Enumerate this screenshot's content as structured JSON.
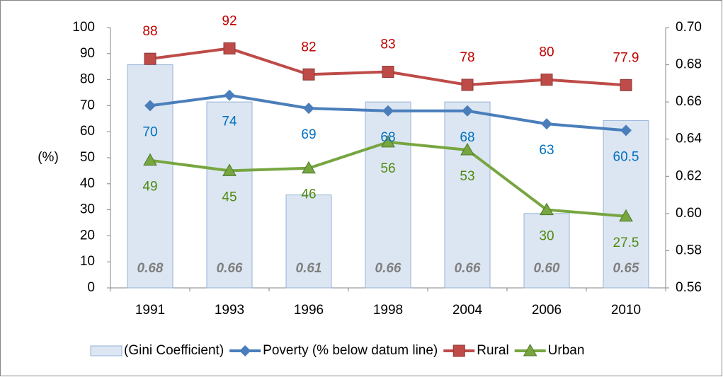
{
  "chart_data": {
    "type": "bar",
    "y_label": "(%)",
    "categories": [
      "1991",
      "1993",
      "1996",
      "1998",
      "2004",
      "2006",
      "2010"
    ],
    "ylim": [
      0,
      100
    ],
    "yticks": [
      0,
      10,
      20,
      30,
      40,
      50,
      60,
      70,
      80,
      90,
      100
    ],
    "y2lim": [
      0.56,
      0.7
    ],
    "y2ticks": [
      {
        "value": 0.56,
        "label": "0.56"
      },
      {
        "value": 0.58,
        "label": "0.58"
      },
      {
        "value": 0.6,
        "label": "0.60"
      },
      {
        "value": 0.62,
        "label": "0.62"
      },
      {
        "value": 0.64,
        "label": "0.64"
      },
      {
        "value": 0.66,
        "label": "0.66"
      },
      {
        "value": 0.68,
        "label": "0.68"
      },
      {
        "value": 0.7,
        "label": "0.70"
      }
    ],
    "series": [
      {
        "name": "(Gini Coefficient)",
        "type": "bar",
        "axis": "y2",
        "color": "#dce6f2",
        "stroke": "#95b3d7",
        "label_color": "#7f7f7f",
        "values": [
          0.68,
          0.66,
          0.61,
          0.66,
          0.66,
          0.6,
          0.65
        ],
        "value_labels": [
          "0.68",
          "0.66",
          "0.61",
          "0.66",
          "0.66",
          "0.60",
          "0.65"
        ]
      },
      {
        "name": "Poverty (% below datum line)",
        "type": "line",
        "marker": "diamond",
        "color": "#4a7ebb",
        "label_color": "#0070c0",
        "label_side": "below",
        "values": [
          70,
          74,
          69,
          68,
          68,
          63,
          60.5
        ]
      },
      {
        "name": "Rural",
        "type": "line",
        "marker": "square",
        "color": "#be4b48",
        "label_color": "#c00000",
        "label_side": "above",
        "values": [
          88,
          92,
          82,
          83,
          78,
          80,
          77.9
        ]
      },
      {
        "name": "Urban",
        "type": "line",
        "marker": "triangle",
        "color": "#77a640",
        "label_color": "#4f8a10",
        "label_side": "below",
        "values": [
          49,
          45,
          46,
          56,
          53,
          30,
          27.5
        ]
      }
    ]
  }
}
